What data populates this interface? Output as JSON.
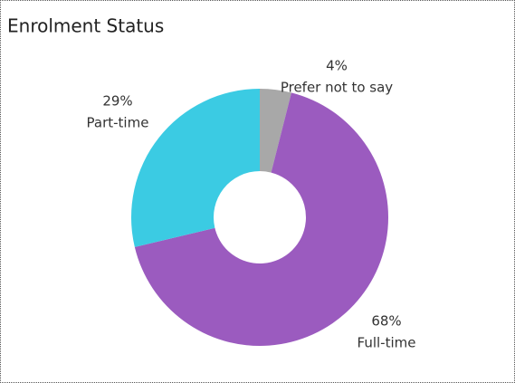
{
  "chart_data": {
    "type": "pie",
    "title": "Enrolment Status",
    "categories": [
      "Prefer not to say",
      "Full-time",
      "Part-time"
    ],
    "values": [
      4,
      68,
      29
    ],
    "value_labels": [
      "4%",
      "68%",
      "29%"
    ],
    "colors": [
      "#a8a8a8",
      "#9b5bbf",
      "#3bcbe3"
    ],
    "donut": true
  }
}
